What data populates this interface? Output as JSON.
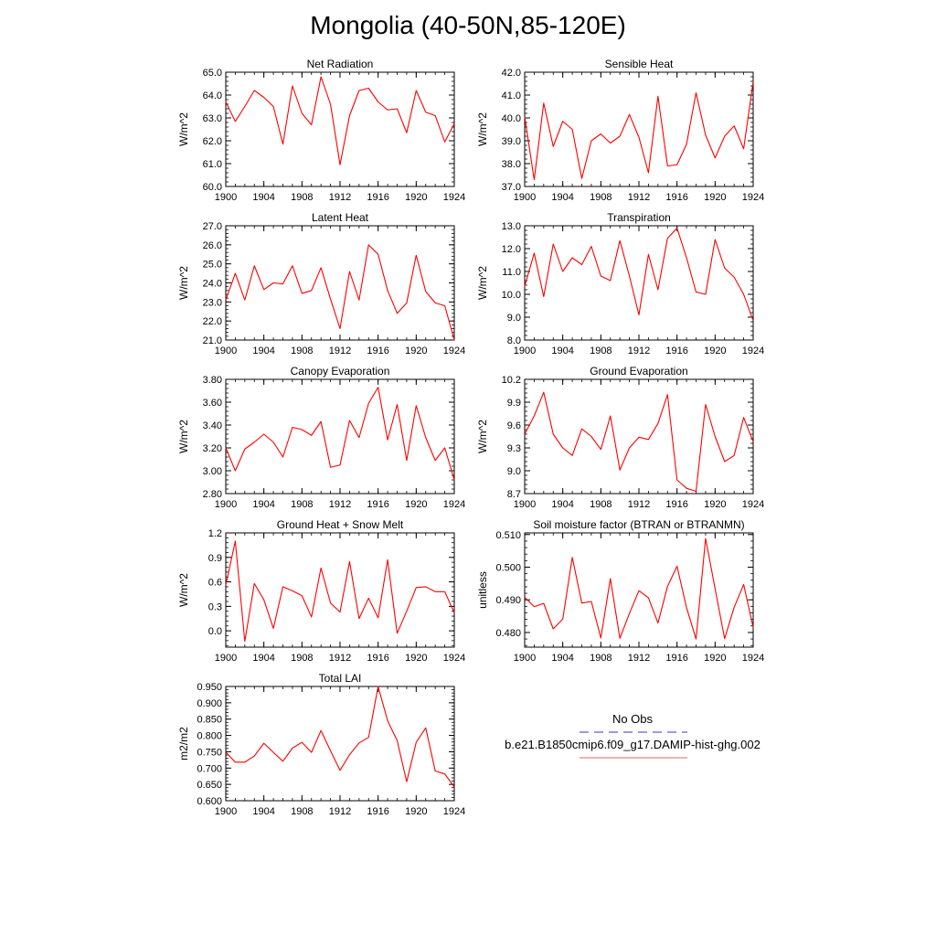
{
  "title": "Mongolia (40-50N,85-120E)",
  "legend": {
    "items": [
      {
        "label": "No Obs",
        "color": "#3333cc",
        "dash": true
      },
      {
        "label": "b.e21.B1850cmip6.f09_g17.DAMIP-hist-ghg.002",
        "color": "#e06060",
        "dash": false
      }
    ]
  },
  "colors": {
    "series": "#ff0000",
    "axis": "#000000"
  },
  "chart_data": [
    {
      "type": "line",
      "title": "Net Radiation",
      "ylabel": "W/m^2",
      "xlim": [
        1900,
        1924
      ],
      "ylim": [
        60.0,
        65.0
      ],
      "xticks": [
        1900,
        1904,
        1908,
        1912,
        1916,
        1920,
        1924
      ],
      "xtick_labels": [
        "1900",
        "1904",
        "1908",
        "1912",
        "1916",
        "1920",
        "1924"
      ],
      "yticks": [
        60.0,
        61.0,
        62.0,
        63.0,
        64.0,
        65.0
      ],
      "ytick_labels": [
        "60.0",
        "61.0",
        "62.0",
        "63.0",
        "64.0",
        "65.0"
      ],
      "series": [
        {
          "x": [
            1900,
            1901,
            1902,
            1903,
            1904,
            1905,
            1906,
            1907,
            1908,
            1909,
            1910,
            1911,
            1912,
            1913,
            1914,
            1915,
            1916,
            1917,
            1918,
            1919,
            1920,
            1921,
            1922,
            1923,
            1924
          ],
          "y": [
            63.7,
            62.85,
            63.5,
            64.2,
            63.9,
            63.5,
            61.85,
            64.4,
            63.2,
            62.7,
            64.8,
            63.6,
            60.95,
            63.1,
            64.2,
            64.3,
            63.7,
            63.35,
            63.4,
            62.35,
            64.2,
            63.25,
            63.1,
            61.95,
            62.75
          ]
        }
      ]
    },
    {
      "type": "line",
      "title": "Sensible Heat",
      "ylabel": "W/m^2",
      "xlim": [
        1900,
        1924
      ],
      "ylim": [
        37.0,
        42.0
      ],
      "xticks": [
        1900,
        1904,
        1908,
        1912,
        1916,
        1920,
        1924
      ],
      "xtick_labels": [
        "1900",
        "1904",
        "1908",
        "1912",
        "1916",
        "1920",
        "1924"
      ],
      "yticks": [
        37.0,
        38.0,
        39.0,
        40.0,
        41.0,
        42.0
      ],
      "ytick_labels": [
        "37.0",
        "38.0",
        "39.0",
        "40.0",
        "41.0",
        "42.0"
      ],
      "series": [
        {
          "x": [
            1900,
            1901,
            1902,
            1903,
            1904,
            1905,
            1906,
            1907,
            1908,
            1909,
            1910,
            1911,
            1912,
            1913,
            1914,
            1915,
            1916,
            1917,
            1918,
            1919,
            1920,
            1921,
            1922,
            1923,
            1924
          ],
          "y": [
            40.05,
            37.3,
            40.65,
            38.75,
            39.85,
            39.5,
            37.35,
            39.0,
            39.3,
            38.9,
            39.2,
            40.15,
            39.15,
            37.6,
            40.95,
            37.9,
            37.95,
            38.85,
            41.1,
            39.25,
            38.25,
            39.2,
            39.65,
            38.65,
            41.6
          ]
        }
      ]
    },
    {
      "type": "line",
      "title": "Latent Heat",
      "ylabel": "W/m^2",
      "xlim": [
        1900,
        1924
      ],
      "ylim": [
        21.0,
        27.0
      ],
      "xticks": [
        1900,
        1904,
        1908,
        1912,
        1916,
        1920,
        1924
      ],
      "xtick_labels": [
        "1900",
        "1904",
        "1908",
        "1912",
        "1916",
        "1920",
        "1924"
      ],
      "yticks": [
        21.0,
        22.0,
        23.0,
        24.0,
        25.0,
        26.0,
        27.0
      ],
      "ytick_labels": [
        "21.0",
        "22.0",
        "23.0",
        "24.0",
        "25.0",
        "26.0",
        "27.0"
      ],
      "series": [
        {
          "x": [
            1900,
            1901,
            1902,
            1903,
            1904,
            1905,
            1906,
            1907,
            1908,
            1909,
            1910,
            1911,
            1912,
            1913,
            1914,
            1915,
            1916,
            1917,
            1918,
            1919,
            1920,
            1921,
            1922,
            1923,
            1924
          ],
          "y": [
            23.1,
            24.5,
            23.1,
            24.9,
            23.65,
            24.0,
            23.95,
            24.9,
            23.45,
            23.6,
            24.8,
            23.15,
            21.6,
            24.6,
            23.1,
            26.0,
            25.5,
            23.6,
            22.4,
            22.95,
            25.45,
            23.55,
            22.95,
            22.8,
            21.0
          ]
        }
      ]
    },
    {
      "type": "line",
      "title": "Transpiration",
      "ylabel": "W/m^2",
      "xlim": [
        1900,
        1924
      ],
      "ylim": [
        8.0,
        13.0
      ],
      "xticks": [
        1900,
        1904,
        1908,
        1912,
        1916,
        1920,
        1924
      ],
      "xtick_labels": [
        "1900",
        "1904",
        "1908",
        "1912",
        "1916",
        "1920",
        "1924"
      ],
      "yticks": [
        8.0,
        9.0,
        10.0,
        11.0,
        12.0,
        13.0
      ],
      "ytick_labels": [
        "8.0",
        "9.0",
        "10.0",
        "11.0",
        "12.0",
        "13.0"
      ],
      "series": [
        {
          "x": [
            1900,
            1901,
            1902,
            1903,
            1904,
            1905,
            1906,
            1907,
            1908,
            1909,
            1910,
            1911,
            1912,
            1913,
            1914,
            1915,
            1916,
            1917,
            1918,
            1919,
            1920,
            1921,
            1922,
            1923,
            1924
          ],
          "y": [
            10.35,
            11.8,
            9.9,
            12.2,
            11.0,
            11.6,
            11.3,
            12.1,
            10.8,
            10.6,
            12.35,
            10.8,
            9.1,
            11.75,
            10.2,
            12.45,
            12.9,
            11.6,
            10.1,
            10.0,
            12.4,
            11.15,
            10.75,
            10.0,
            8.85
          ]
        }
      ]
    },
    {
      "type": "line",
      "title": "Canopy Evaporation",
      "ylabel": "W/m^2",
      "xlim": [
        1900,
        1924
      ],
      "ylim": [
        2.8,
        3.8
      ],
      "xticks": [
        1900,
        1904,
        1908,
        1912,
        1916,
        1920,
        1924
      ],
      "xtick_labels": [
        "1900",
        "1904",
        "1908",
        "1912",
        "1916",
        "1920",
        "1924"
      ],
      "yticks": [
        2.8,
        3.0,
        3.2,
        3.4,
        3.6,
        3.8
      ],
      "ytick_labels": [
        "2.80",
        "3.00",
        "3.20",
        "3.40",
        "3.60",
        "3.80"
      ],
      "series": [
        {
          "x": [
            1900,
            1901,
            1902,
            1903,
            1904,
            1905,
            1906,
            1907,
            1908,
            1909,
            1910,
            1911,
            1912,
            1913,
            1914,
            1915,
            1916,
            1917,
            1918,
            1919,
            1920,
            1921,
            1922,
            1923,
            1924
          ],
          "y": [
            3.2,
            3.0,
            3.19,
            3.25,
            3.32,
            3.25,
            3.12,
            3.38,
            3.36,
            3.31,
            3.43,
            3.03,
            3.05,
            3.44,
            3.29,
            3.59,
            3.73,
            3.27,
            3.58,
            3.09,
            3.57,
            3.29,
            3.09,
            3.2,
            2.92
          ]
        }
      ]
    },
    {
      "type": "line",
      "title": "Ground Evaporation",
      "ylabel": "W/m^2",
      "xlim": [
        1900,
        1924
      ],
      "ylim": [
        8.7,
        10.2
      ],
      "xticks": [
        1900,
        1904,
        1908,
        1912,
        1916,
        1920,
        1924
      ],
      "xtick_labels": [
        "1900",
        "1904",
        "1908",
        "1912",
        "1916",
        "1920",
        "1924"
      ],
      "yticks": [
        8.7,
        9.0,
        9.3,
        9.6,
        9.9,
        10.2
      ],
      "ytick_labels": [
        "8.7",
        "9.0",
        "9.3",
        "9.6",
        "9.9",
        "10.2"
      ],
      "series": [
        {
          "x": [
            1900,
            1901,
            1902,
            1903,
            1904,
            1905,
            1906,
            1907,
            1908,
            1909,
            1910,
            1911,
            1912,
            1913,
            1914,
            1915,
            1916,
            1917,
            1918,
            1919,
            1920,
            1921,
            1922,
            1923,
            1924
          ],
          "y": [
            9.48,
            9.72,
            10.03,
            9.48,
            9.3,
            9.2,
            9.55,
            9.45,
            9.28,
            9.72,
            9.01,
            9.3,
            9.44,
            9.41,
            9.62,
            10.0,
            8.88,
            8.77,
            8.73,
            9.87,
            9.45,
            9.12,
            9.2,
            9.7,
            9.38
          ]
        }
      ]
    },
    {
      "type": "line",
      "title": "Ground Heat + Snow Melt",
      "ylabel": "W/m^2",
      "xlim": [
        1900,
        1924
      ],
      "ylim": [
        -0.2,
        1.2
      ],
      "xticks": [
        1900,
        1904,
        1908,
        1912,
        1916,
        1920,
        1924
      ],
      "xtick_labels": [
        "1900",
        "1904",
        "1908",
        "1912",
        "1916",
        "1920",
        "1924"
      ],
      "yticks": [
        0.0,
        0.3,
        0.6,
        0.9,
        1.2
      ],
      "ytick_labels": [
        "0.0",
        "0.3",
        "0.6",
        "0.9",
        "1.2"
      ],
      "series": [
        {
          "x": [
            1900,
            1901,
            1902,
            1903,
            1904,
            1905,
            1906,
            1907,
            1908,
            1909,
            1910,
            1911,
            1912,
            1913,
            1914,
            1915,
            1916,
            1917,
            1918,
            1919,
            1920,
            1921,
            1922,
            1923,
            1924
          ],
          "y": [
            0.56,
            1.1,
            -0.13,
            0.58,
            0.38,
            0.03,
            0.54,
            0.49,
            0.43,
            0.17,
            0.77,
            0.34,
            0.23,
            0.85,
            0.15,
            0.4,
            0.16,
            0.87,
            -0.03,
            0.24,
            0.53,
            0.54,
            0.48,
            0.48,
            0.22
          ]
        }
      ]
    },
    {
      "type": "line",
      "title": "Soil moisture factor (BTRAN or BTRANMN)",
      "ylabel": "unitless",
      "xlim": [
        1900,
        1924
      ],
      "ylim": [
        0.4755,
        0.5105
      ],
      "xticks": [
        1900,
        1904,
        1908,
        1912,
        1916,
        1920,
        1924
      ],
      "xtick_labels": [
        "1900",
        "1904",
        "1908",
        "1912",
        "1916",
        "1920",
        "1924"
      ],
      "yticks": [
        0.48,
        0.49,
        0.5,
        0.51
      ],
      "ytick_labels": [
        "0.480",
        "0.490",
        "0.500",
        "0.510"
      ],
      "series": [
        {
          "x": [
            1900,
            1901,
            1902,
            1903,
            1904,
            1905,
            1906,
            1907,
            1908,
            1909,
            1910,
            1911,
            1912,
            1913,
            1914,
            1915,
            1916,
            1917,
            1918,
            1919,
            1920,
            1921,
            1922,
            1923,
            1924
          ],
          "y": [
            0.4908,
            0.4879,
            0.4889,
            0.4811,
            0.4841,
            0.503,
            0.489,
            0.4895,
            0.4783,
            0.4965,
            0.4782,
            0.4858,
            0.4928,
            0.4906,
            0.4829,
            0.4941,
            0.5003,
            0.4876,
            0.478,
            0.5088,
            0.4934,
            0.4781,
            0.4877,
            0.4947,
            0.4815
          ]
        }
      ]
    },
    {
      "type": "line",
      "title": "Total LAI",
      "ylabel": "m2/m2",
      "xlim": [
        1900,
        1924
      ],
      "ylim": [
        0.6,
        0.95
      ],
      "xticks": [
        1900,
        1904,
        1908,
        1912,
        1916,
        1920,
        1924
      ],
      "xtick_labels": [
        "1900",
        "1904",
        "1908",
        "1912",
        "1916",
        "1920",
        "1924"
      ],
      "yticks": [
        0.6,
        0.65,
        0.7,
        0.75,
        0.8,
        0.85,
        0.9,
        0.95
      ],
      "ytick_labels": [
        "0.600",
        "0.650",
        "0.700",
        "0.750",
        "0.800",
        "0.850",
        "0.900",
        "0.950"
      ],
      "series": [
        {
          "x": [
            1900,
            1901,
            1902,
            1903,
            1904,
            1905,
            1906,
            1907,
            1908,
            1909,
            1910,
            1911,
            1912,
            1913,
            1914,
            1915,
            1916,
            1917,
            1918,
            1919,
            1920,
            1921,
            1922,
            1923,
            1924
          ],
          "y": [
            0.749,
            0.718,
            0.718,
            0.737,
            0.776,
            0.748,
            0.721,
            0.761,
            0.779,
            0.748,
            0.815,
            0.753,
            0.693,
            0.741,
            0.777,
            0.794,
            0.95,
            0.845,
            0.784,
            0.658,
            0.779,
            0.823,
            0.691,
            0.682,
            0.642
          ]
        }
      ]
    }
  ]
}
